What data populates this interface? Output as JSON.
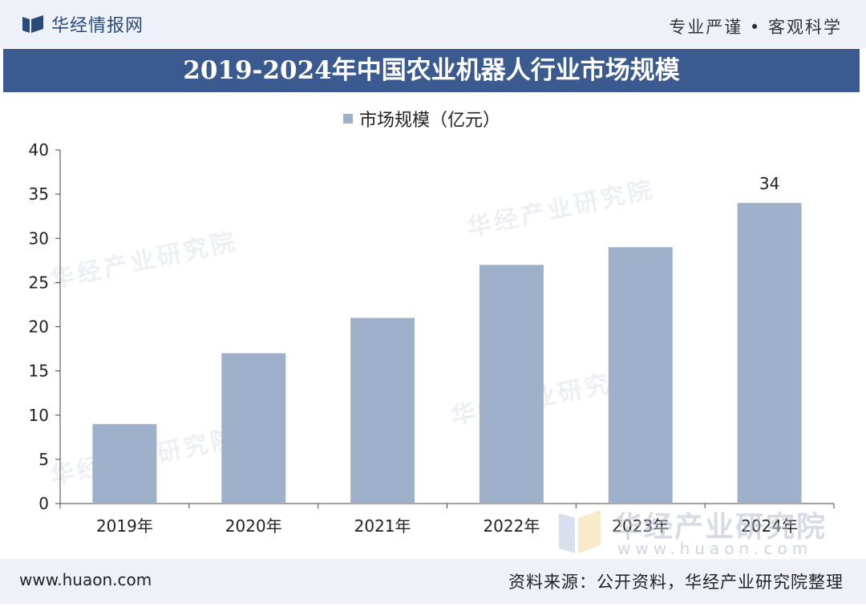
{
  "header": {
    "brand_name": "华经情报网",
    "slogan": "专业严谨 • 客观科学"
  },
  "colors": {
    "title_bar": "#3b5a90",
    "bar": "#9eb0ca",
    "header_bg": "#eef2f8"
  },
  "watermark": {
    "text": "华经产业研究院",
    "url": "www.huaon.com"
  },
  "footer": {
    "url": "www.huaon.com",
    "source": "资料来源：公开资料，华经产业研究院整理"
  },
  "chart_data": {
    "type": "bar",
    "title": "2019-2024年中国农业机器人行业市场规模",
    "categories": [
      "2019年",
      "2020年",
      "2021年",
      "2022年",
      "2023年",
      "2024年"
    ],
    "series": [
      {
        "name": "市场规模（亿元）",
        "values": [
          9,
          17,
          21,
          27,
          29,
          34
        ]
      }
    ],
    "data_labels": [
      null,
      null,
      null,
      null,
      null,
      "34"
    ],
    "y_ticks": [
      "0",
      "5",
      "10",
      "15",
      "20",
      "25",
      "30",
      "35",
      "40"
    ],
    "ylim": [
      0,
      40
    ],
    "grid": false,
    "legend_position": "top"
  }
}
